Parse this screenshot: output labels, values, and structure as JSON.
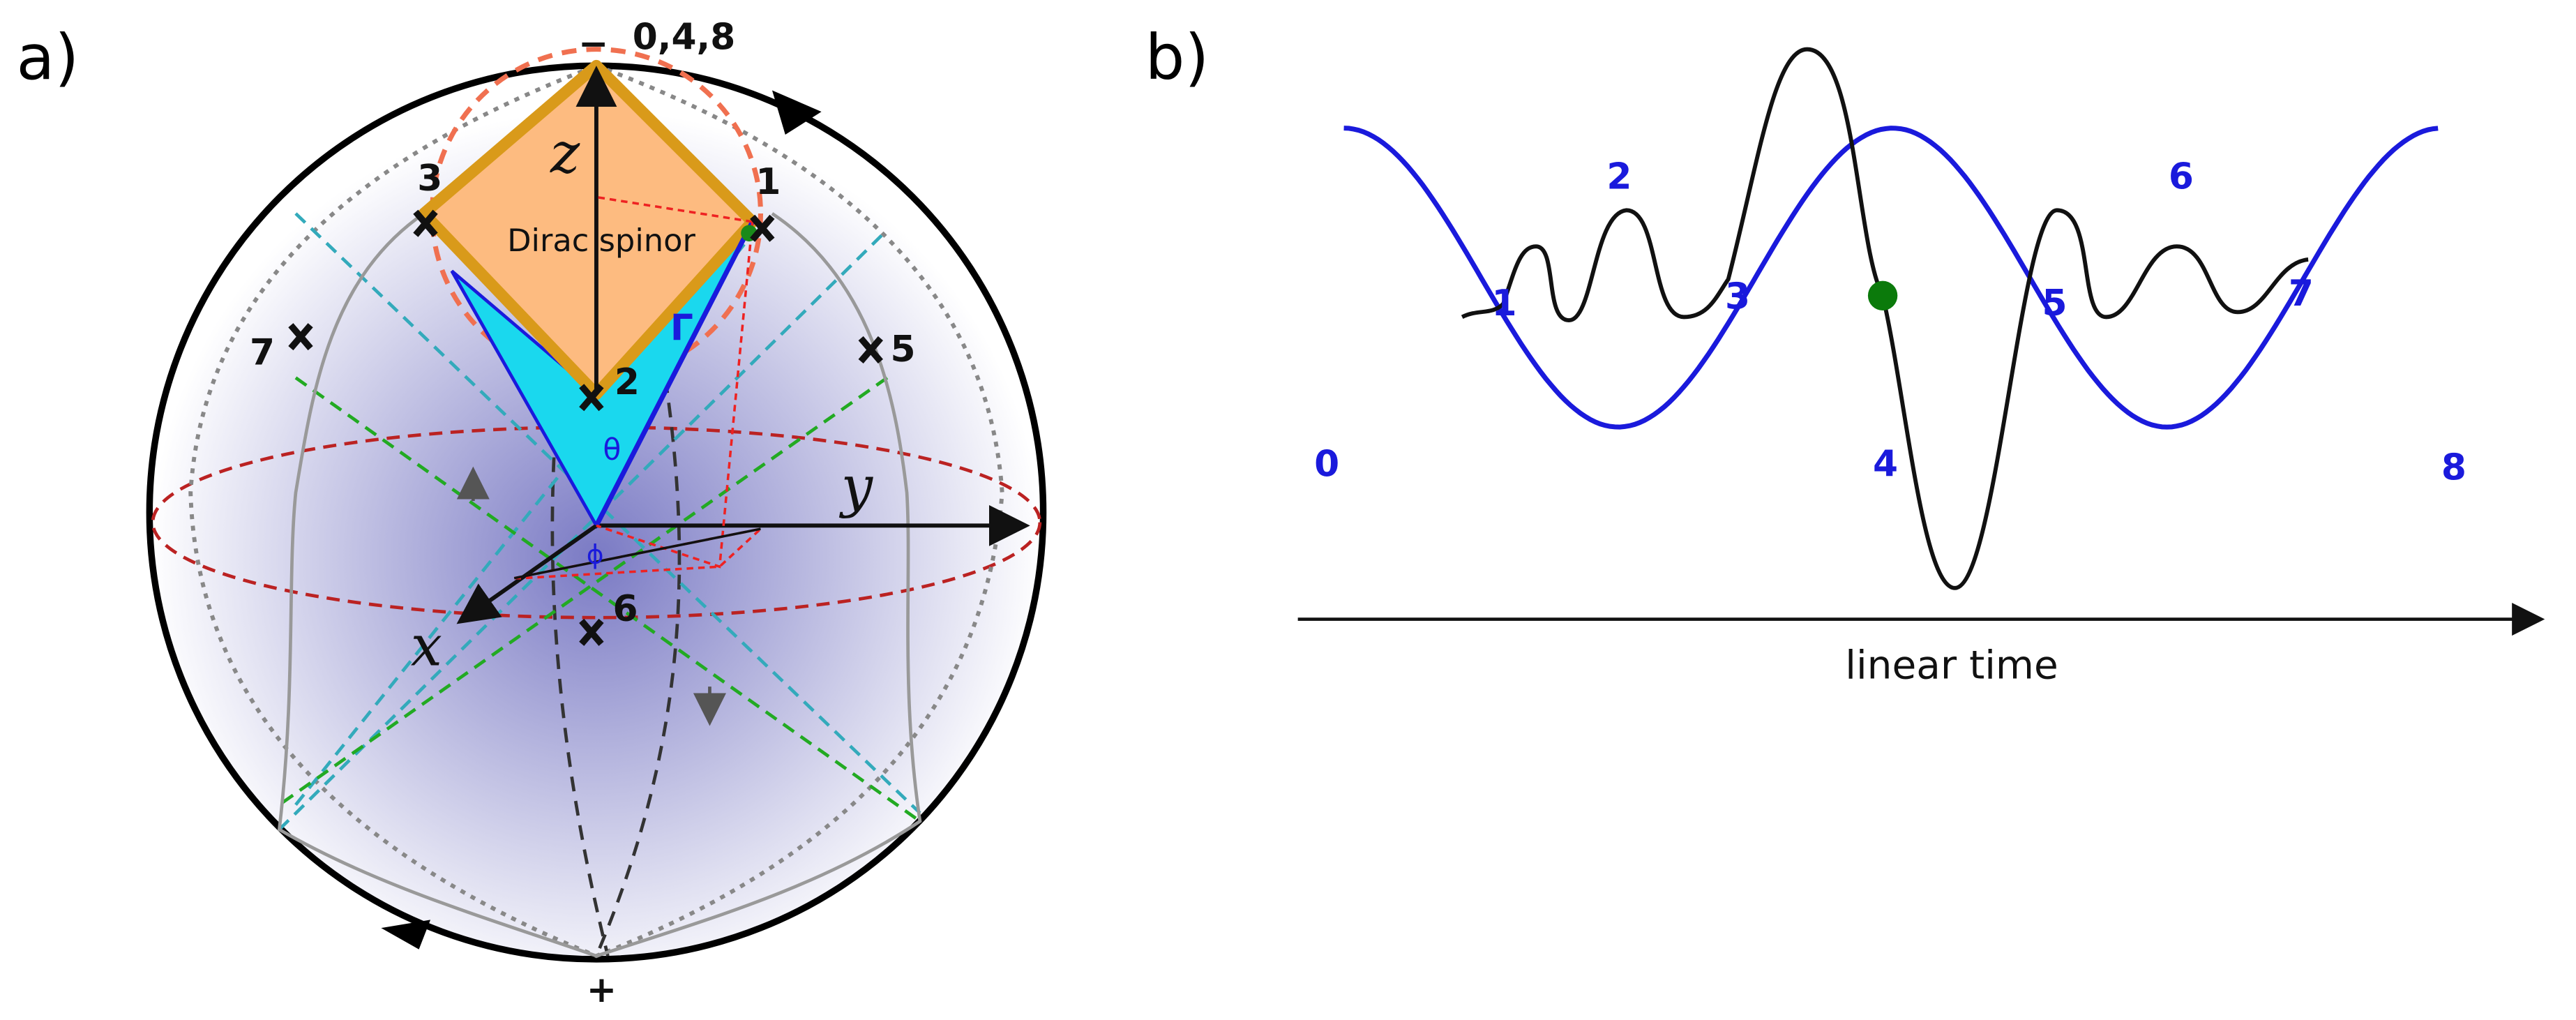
{
  "panel_a": {
    "label": "a)",
    "pole_top_sign": "−",
    "pole_top_label": "0,4,8",
    "pole_bottom_sign": "+",
    "axes": {
      "z": "z",
      "y": "y",
      "x": "x"
    },
    "spinor_label": "Dirac spinor",
    "gamma": "Γ",
    "theta": "θ",
    "phi": "ϕ",
    "points": [
      "1",
      "2",
      "3",
      "5",
      "6",
      "7"
    ]
  },
  "panel_b": {
    "label": "b)",
    "points": [
      "0",
      "1",
      "2",
      "3",
      "4",
      "5",
      "6",
      "7",
      "8"
    ],
    "x_axis_label": "linear time"
  }
}
